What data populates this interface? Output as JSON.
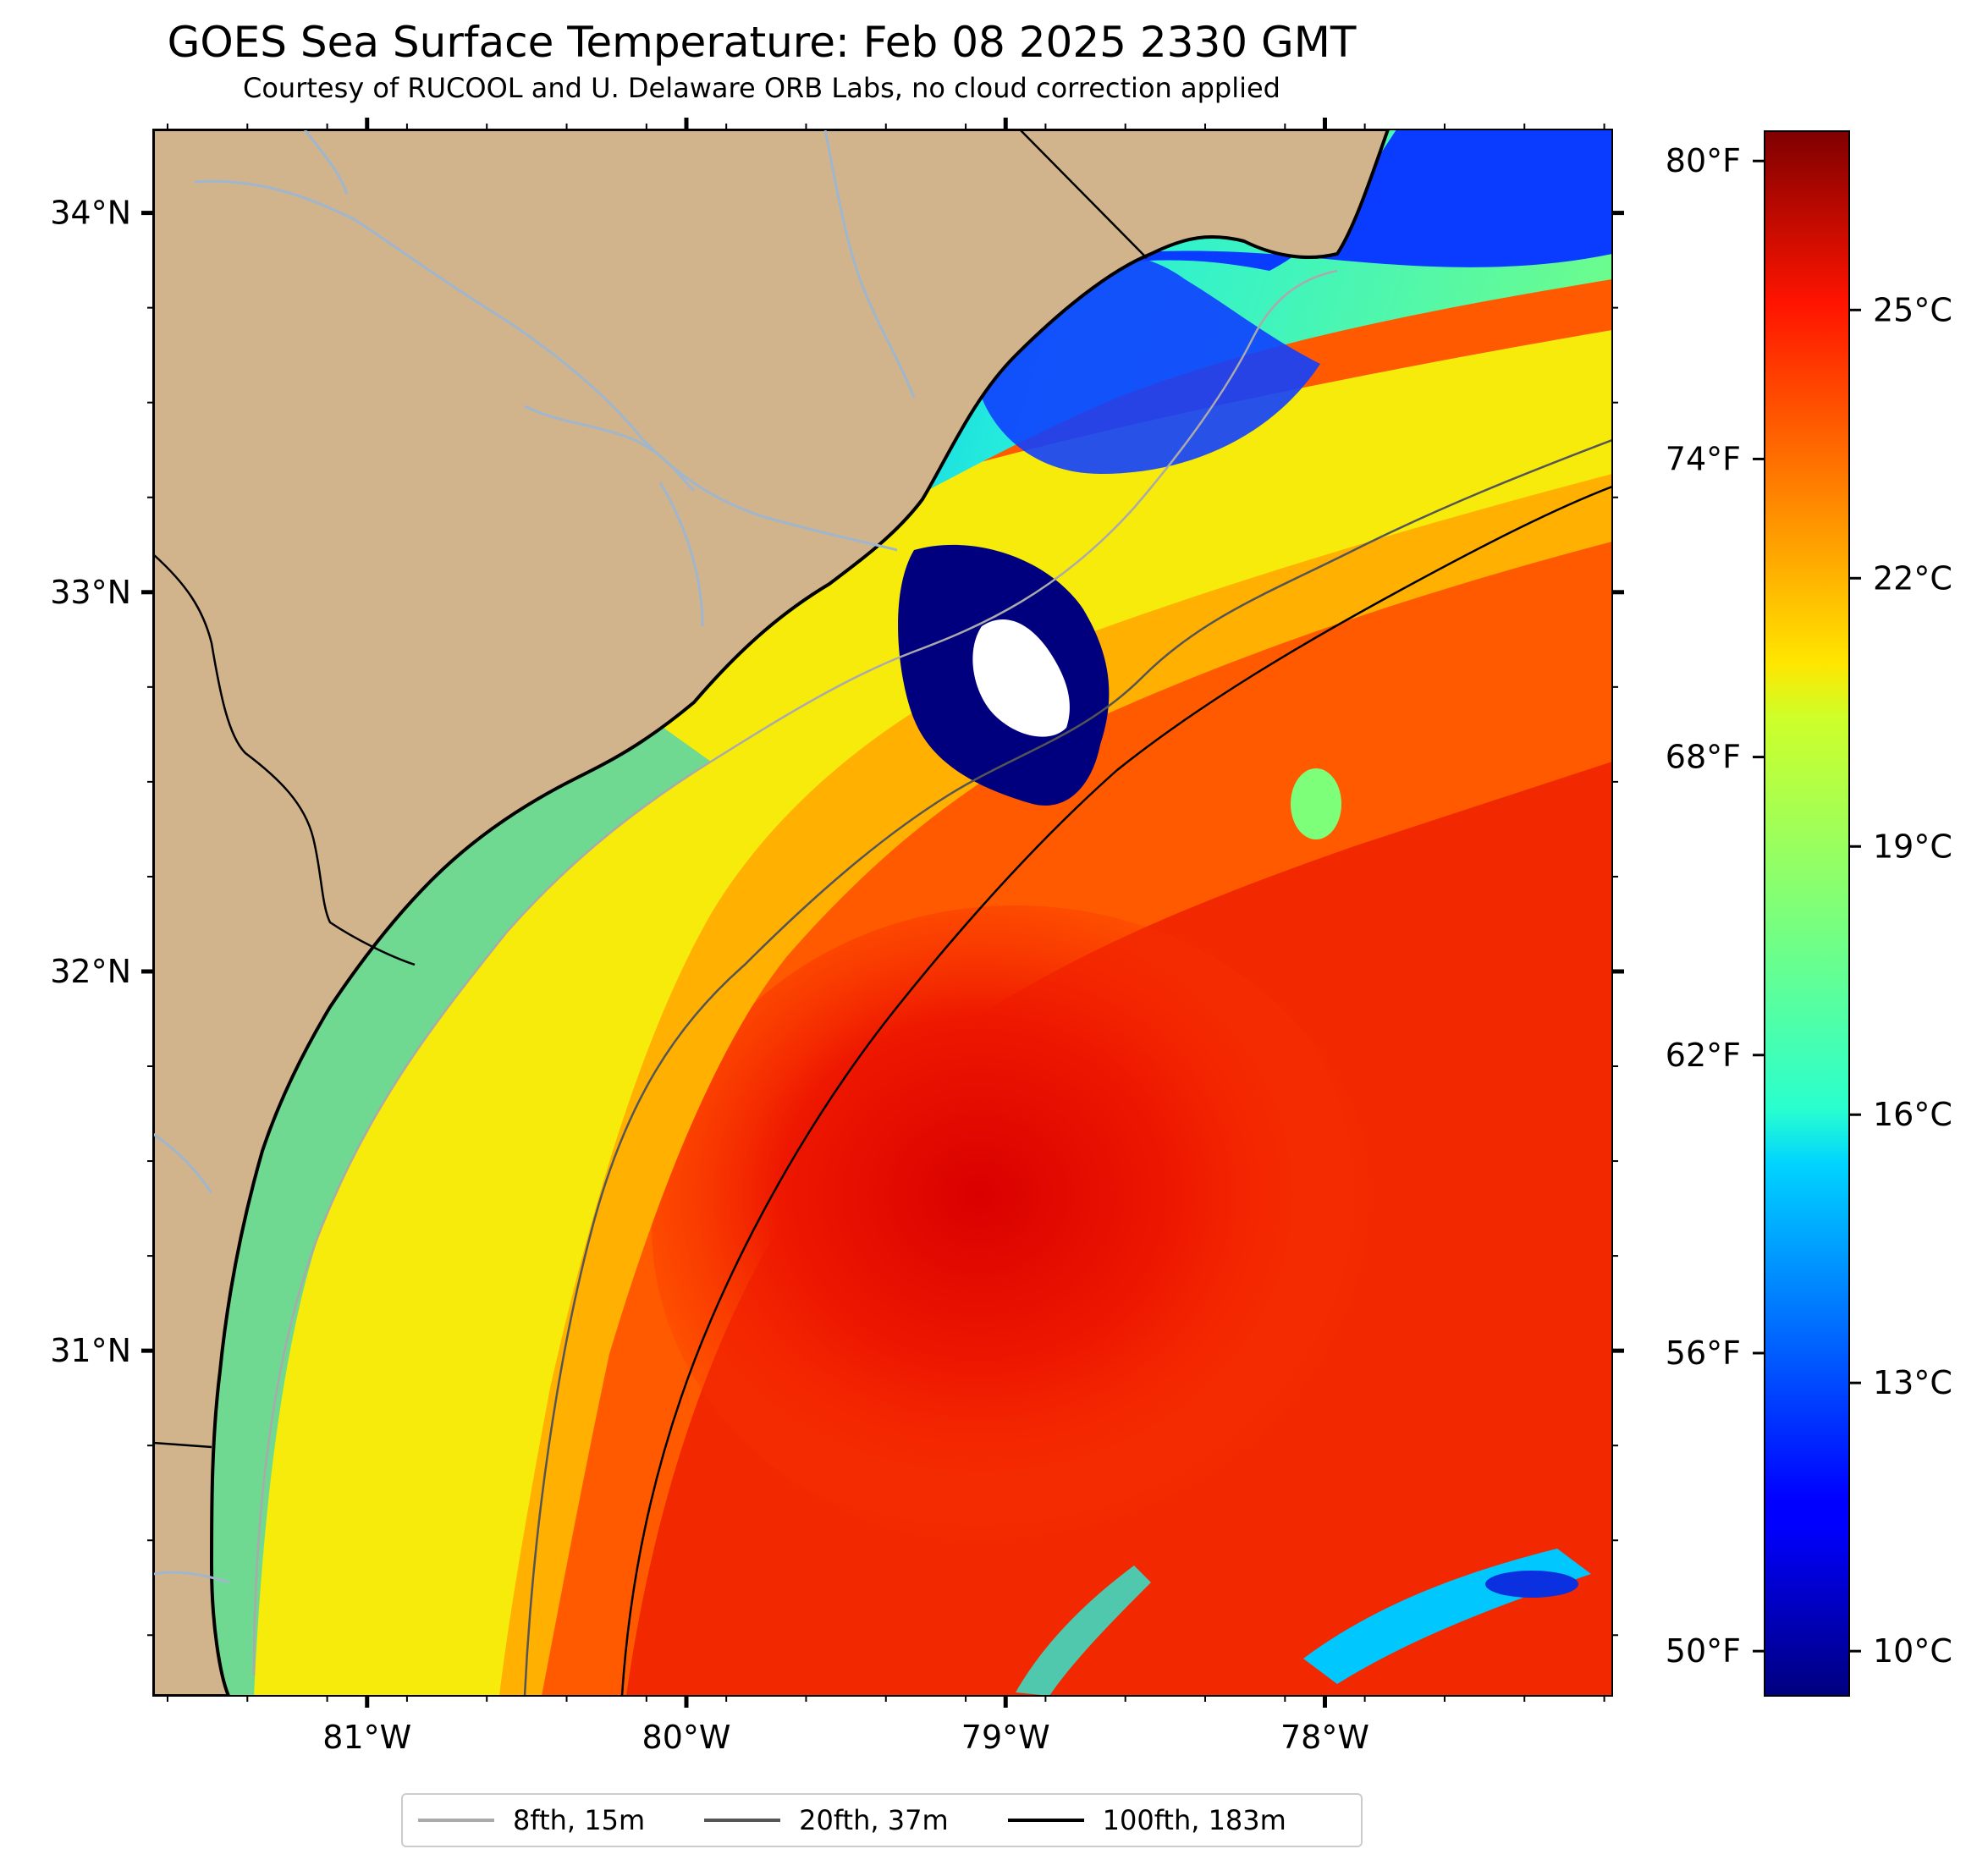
{
  "title": "GOES Sea Surface Temperature: Feb 08 2025 2330 GMT",
  "subtitle": "Courtesy of RUCOOL and U. Delaware ORB Labs, no cloud correction applied",
  "map": {
    "lon_min": -81.67,
    "lon_max": -77.1,
    "lat_min": 30.09,
    "lat_max": 34.22,
    "lon_ticks": [
      {
        "value": -81,
        "label": "81°W"
      },
      {
        "value": -80,
        "label": "80°W"
      },
      {
        "value": -79,
        "label": "79°W"
      },
      {
        "value": -78,
        "label": "78°W"
      }
    ],
    "lat_ticks": [
      {
        "value": 34,
        "label": "34°N"
      },
      {
        "value": 33,
        "label": "33°N"
      },
      {
        "value": 32,
        "label": "32°N"
      },
      {
        "value": 31,
        "label": "31°N"
      }
    ],
    "colors": {
      "land": "#d2b48c",
      "river": "#9fb6cd",
      "no_data": "#ffffff"
    }
  },
  "colorbar": {
    "colormap": "jet",
    "celsius_min": 9.5,
    "celsius_max": 27.0,
    "celsius_ticks": [
      {
        "value": 10,
        "label": "10°C"
      },
      {
        "value": 13,
        "label": "13°C"
      },
      {
        "value": 16,
        "label": "16°C"
      },
      {
        "value": 19,
        "label": "19°C"
      },
      {
        "value": 22,
        "label": "22°C"
      },
      {
        "value": 25,
        "label": "25°C"
      }
    ],
    "fahrenheit_ticks": [
      {
        "value": 50,
        "label": "50°F"
      },
      {
        "value": 56,
        "label": "56°F"
      },
      {
        "value": 62,
        "label": "62°F"
      },
      {
        "value": 68,
        "label": "68°F"
      },
      {
        "value": 74,
        "label": "74°F"
      },
      {
        "value": 80,
        "label": "80°F"
      }
    ]
  },
  "legend": [
    {
      "label": "8fth, 15m",
      "color": "#aaaaaa"
    },
    {
      "label": "20fth, 37m",
      "color": "#555555"
    },
    {
      "label": "100fth, 183m",
      "color": "#000000"
    }
  ]
}
